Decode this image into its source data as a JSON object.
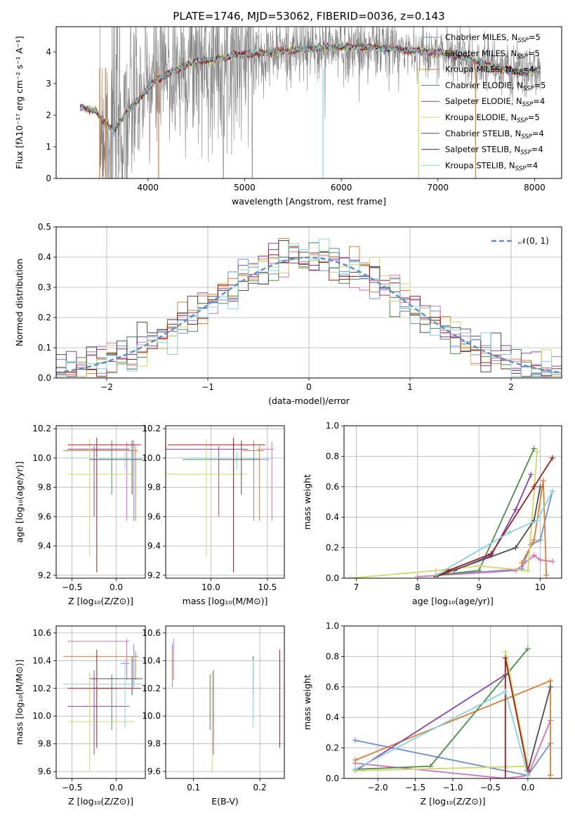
{
  "colors": {
    "series": [
      "#6a8fdb",
      "#d96ec0",
      "#e07b2a",
      "#4a8f4a",
      "#8e3fb0",
      "#cfd95b",
      "#4d4d4d",
      "#a01a1a",
      "#7fd6df"
    ],
    "data_spectrum": "#808080",
    "grid": "#b0b0b0",
    "normal_curve": "#5b8fd0"
  },
  "chart_data": [
    {
      "id": "spectrum",
      "type": "line",
      "title": "PLATE=1746, MJD=53062, FIBERID=0036, z=0.143",
      "xlabel": "wavelength [Angstrom, rest frame]",
      "ylabel": "Flux [fλ10⁻¹⁷ erg cm⁻² s⁻¹ A⁻¹]",
      "xlim": [
        3050,
        8280
      ],
      "ylim": [
        0,
        4.8
      ],
      "xticks": [
        4000,
        5000,
        6000,
        7000,
        8000
      ],
      "yticks": [
        0,
        1,
        2,
        3,
        4
      ],
      "grid": false,
      "legend_position": "top-right",
      "legend": [
        {
          "model": "Chabrier MILES",
          "nssp": "5"
        },
        {
          "model": "Salpeter MILES",
          "nssp": "5"
        },
        {
          "model": "Kroupa MILES",
          "nssp": "4"
        },
        {
          "model": "Chabrier ELODIE",
          "nssp": "5"
        },
        {
          "model": "Salpeter ELODIE",
          "nssp": "4"
        },
        {
          "model": "Kroupa ELODIE",
          "nssp": "5"
        },
        {
          "model": "Chabrier STELIB",
          "nssp": "4"
        },
        {
          "model": "Salpeter STELIB",
          "nssp": "4"
        },
        {
          "model": "Kroupa STELIB",
          "nssp": "4"
        }
      ],
      "continuum": {
        "x": [
          3300,
          3450,
          3550,
          3650,
          3750,
          3850,
          3950,
          4050,
          4150,
          4300,
          4500,
          4700,
          4900,
          5100,
          5300,
          5500,
          5700,
          5900,
          6100,
          6300,
          6500,
          6700,
          6900,
          7100,
          7300,
          7500,
          7700,
          7900,
          8050
        ],
        "y": [
          2.25,
          2.15,
          1.75,
          1.55,
          1.95,
          2.35,
          2.65,
          3.05,
          3.2,
          3.45,
          3.7,
          3.75,
          3.9,
          3.95,
          4.0,
          4.05,
          4.1,
          4.15,
          4.15,
          4.15,
          4.1,
          4.05,
          4.0,
          3.95,
          3.8,
          3.6,
          3.45,
          3.35,
          3.45
        ]
      }
    },
    {
      "id": "residuals",
      "type": "line",
      "xlabel": "(data-model)/error",
      "ylabel": "Normed distribution",
      "xlim": [
        -2.5,
        2.5
      ],
      "ylim": [
        0,
        0.5
      ],
      "xticks": [
        -2,
        -1,
        0,
        1,
        2
      ],
      "yticks": [
        0.0,
        0.1,
        0.2,
        0.3,
        0.4,
        0.5
      ],
      "grid": true,
      "legend_position": "top-right",
      "legend": [
        "𝒩(0, 1)"
      ],
      "normal": {
        "mean": 0,
        "sigma": 1
      }
    },
    {
      "id": "age-vs-Z",
      "type": "scatter",
      "xlabel": "Z [log₁₀(Z/Z⊙)]",
      "ylabel": "age  [log₁₀(age/yr)]",
      "xlim": [
        -0.68,
        0.33
      ],
      "ylim": [
        9.18,
        10.22
      ],
      "xticks": [
        -0.5,
        0.0
      ],
      "yticks": [
        9.2,
        9.4,
        9.6,
        9.8,
        10.0,
        10.2
      ],
      "grid": true
    },
    {
      "id": "age-vs-mass",
      "type": "scatter",
      "xlabel": "mass [log₁₀(M/M⊙)]",
      "xlim": [
        9.6,
        10.65
      ],
      "ylim": [
        9.18,
        10.22
      ],
      "xticks": [
        10.0,
        10.5
      ],
      "yticks": [
        9.2,
        9.4,
        9.6,
        9.8,
        10.0,
        10.2
      ],
      "grid": true
    },
    {
      "id": "weight-vs-age",
      "type": "line",
      "xlabel": "age  [log₁₀(age/yr)]",
      "ylabel": "mass weight",
      "xlim": [
        6.8,
        10.35
      ],
      "ylim": [
        0,
        1.0
      ],
      "xticks": [
        7,
        8,
        9,
        10
      ],
      "yticks": [
        0.0,
        0.2,
        0.4,
        0.6,
        0.8,
        1.0
      ],
      "grid": true
    },
    {
      "id": "mass-vs-Z",
      "type": "scatter",
      "xlabel": "Z [log₁₀(Z/Z⊙)]",
      "ylabel": "mass [log₁₀(M/M⊙)]",
      "xlim": [
        -0.68,
        0.33
      ],
      "ylim": [
        9.55,
        10.65
      ],
      "xticks": [
        -0.5,
        0.0
      ],
      "yticks": [
        9.6,
        9.8,
        10.0,
        10.2,
        10.4,
        10.6
      ],
      "grid": true
    },
    {
      "id": "mass-vs-ebv",
      "type": "scatter",
      "xlabel": "E(B-V)",
      "xlim": [
        0.058,
        0.237
      ],
      "ylim": [
        9.55,
        10.65
      ],
      "xticks": [
        0.1,
        0.2
      ],
      "yticks": [
        9.6,
        9.8,
        10.0,
        10.2,
        10.4,
        10.6
      ],
      "grid": true
    },
    {
      "id": "weight-vs-Z",
      "type": "line",
      "xlabel": "Z [log₁₀(Z/Z⊙)]",
      "ylabel": "mass weight",
      "xlim": [
        -2.45,
        0.45
      ],
      "ylim": [
        0,
        1.0
      ],
      "xticks": [
        -2.0,
        -1.5,
        -1.0,
        -0.5,
        0.0
      ],
      "yticks": [
        0.0,
        0.2,
        0.4,
        0.6,
        0.8,
        1.0
      ],
      "grid": true
    }
  ],
  "fits": [
    {
      "ebv": 0.068,
      "z": [
        0.15,
        0.05,
        0.2,
        0.3
      ],
      "age": [
        9.99,
        9.57,
        10.11,
        9.99
      ],
      "mass": [
        10.38,
        10.22,
        10.52,
        10.38
      ],
      "age_err_v": [
        9.57,
        10.12
      ],
      "mass_v": [
        10.21,
        10.52
      ],
      "age_hist": [
        [
          8.3,
          0.02
        ],
        [
          9.7,
          0.06
        ],
        [
          9.85,
          0.22
        ],
        [
          10.0,
          0.25
        ],
        [
          10.2,
          0.57
        ]
      ],
      "z_hist": [
        [
          -2.3,
          0.25
        ],
        [
          0.0,
          0.02
        ],
        [
          0.3,
          0.23
        ]
      ]
    },
    {
      "ebv": 0.07,
      "z": [
        -0.55,
        0.15,
        0.12,
        0.0
      ],
      "age": [
        10.06,
        9.57,
        10.11,
        10.06
      ],
      "mass": [
        10.54,
        10.22,
        10.56,
        10.54
      ],
      "age_err_v": [
        9.57,
        10.11
      ],
      "mass_v": [
        10.26,
        10.56
      ],
      "age_hist": [
        [
          8.0,
          0.01
        ],
        [
          9.6,
          0.05
        ],
        [
          9.9,
          0.15
        ],
        [
          10.0,
          0.12
        ],
        [
          10.2,
          0.11
        ]
      ],
      "z_hist": [
        [
          -2.3,
          0.1
        ],
        [
          -0.3,
          0.0
        ],
        [
          0.0,
          0.02
        ],
        [
          0.3,
          0.38
        ]
      ]
    },
    {
      "ebv": 0.068,
      "z": [
        -0.6,
        0.25,
        0.22,
        0.0
      ],
      "age": [
        10.05,
        9.57,
        10.08,
        10.05
      ],
      "mass": [
        10.43,
        10.2,
        10.47,
        10.43
      ],
      "age_err_v": [
        9.57,
        10.08
      ],
      "mass_v": [
        10.26,
        10.47
      ],
      "age_hist": [
        [
          9.7,
          0.1
        ],
        [
          9.9,
          0.25
        ],
        [
          10.05,
          0.64
        ],
        [
          10.1,
          0.02
        ]
      ],
      "z_hist": [
        [
          -2.3,
          0.12
        ],
        [
          0.3,
          0.64
        ],
        [
          0.3,
          0.02
        ]
      ]
    },
    {
      "ebv": 0.125,
      "z": [
        -0.22,
        0.0,
        -0.05,
        0.0
      ],
      "age": [
        9.99,
        9.75,
        10.12,
        9.99
      ],
      "mass": [
        10.2,
        9.9,
        10.3,
        10.2
      ],
      "age_err_v": [
        9.75,
        10.12
      ],
      "mass_v": [
        9.9,
        10.3
      ],
      "age_hist": [
        [
          8.3,
          0.02
        ],
        [
          9.0,
          0.05
        ],
        [
          9.9,
          0.85
        ]
      ],
      "z_hist": [
        [
          -2.3,
          0.06
        ],
        [
          -1.3,
          0.08
        ],
        [
          0.0,
          0.85
        ]
      ]
    },
    {
      "ebv": 0.13,
      "z": [
        -0.55,
        0.15,
        -0.25,
        0.0
      ],
      "age": [
        10.06,
        9.6,
        10.08,
        10.06
      ],
      "mass": [
        10.07,
        9.72,
        10.33,
        10.07
      ],
      "age_err_v": [
        9.6,
        10.08
      ],
      "mass_v": [
        9.72,
        10.33
      ],
      "age_hist": [
        [
          8.6,
          0.05
        ],
        [
          9.2,
          0.15
        ],
        [
          9.6,
          0.45
        ],
        [
          9.85,
          0.68
        ]
      ],
      "z_hist": [
        [
          -2.3,
          0.05
        ],
        [
          -0.3,
          0.68
        ]
      ]
    },
    {
      "ebv": 0.128,
      "z": [
        -0.55,
        0.2,
        -0.3,
        0.0
      ],
      "age": [
        9.89,
        9.33,
        10.13,
        9.89
      ],
      "mass": [
        9.96,
        9.6,
        10.32,
        9.96
      ],
      "age_err_v": [
        9.33,
        10.13
      ],
      "mass_v": [
        9.6,
        10.32
      ],
      "age_hist": [
        [
          6.9,
          0.0
        ],
        [
          8.3,
          0.05
        ],
        [
          9.0,
          0.08
        ],
        [
          9.8,
          0.05
        ],
        [
          9.95,
          0.83
        ]
      ],
      "z_hist": [
        [
          -2.3,
          0.05
        ],
        [
          0.0,
          0.08
        ],
        [
          -0.3,
          0.83
        ]
      ]
    },
    {
      "ebv": 0.19,
      "z": [
        -0.3,
        0.3,
        0.18,
        0.0
      ],
      "age": [
        9.99,
        9.98,
        10.0,
        9.99
      ],
      "mass": [
        10.27,
        10.15,
        10.43,
        10.27
      ],
      "age_err_v": [
        9.75,
        10.12
      ],
      "mass_v": [
        10.15,
        10.43
      ],
      "age_hist": [
        [
          8.3,
          0.01
        ],
        [
          9.6,
          0.2
        ],
        [
          9.9,
          0.38
        ],
        [
          10.0,
          0.6
        ]
      ],
      "z_hist": [
        [
          0.0,
          0.05
        ],
        [
          0.3,
          0.6
        ]
      ]
    },
    {
      "ebv": 0.23,
      "z": [
        -0.55,
        0.28,
        -0.22,
        0.0
      ],
      "age": [
        10.09,
        9.22,
        10.14,
        10.09
      ],
      "mass": [
        10.2,
        9.77,
        10.48,
        10.2
      ],
      "age_err_v": [
        9.22,
        10.14
      ],
      "mass_v": [
        9.77,
        10.48
      ],
      "age_hist": [
        [
          8.3,
          0.01
        ],
        [
          8.5,
          0.05
        ],
        [
          9.2,
          0.16
        ],
        [
          9.9,
          0.6
        ],
        [
          10.2,
          0.79
        ]
      ],
      "z_hist": [
        [
          -0.3,
          0.0
        ],
        [
          -0.3,
          0.79
        ],
        [
          0.0,
          0.05
        ]
      ]
    },
    {
      "ebv": 0.19,
      "z": [
        -0.6,
        0.3,
        0.1,
        0.0
      ],
      "age": [
        10.0,
        9.95,
        10.04,
        10.0
      ],
      "mass": [
        10.23,
        9.92,
        10.41,
        10.23
      ],
      "age_err_v": [
        9.92,
        10.04
      ],
      "mass_v": [
        9.92,
        10.41
      ],
      "age_hist": [
        [
          8.3,
          0.02
        ],
        [
          9.5,
          0.3
        ],
        [
          9.95,
          0.38
        ],
        [
          10.2,
          0.57
        ]
      ],
      "z_hist": [
        [
          -2.3,
          0.06
        ],
        [
          -0.3,
          0.57
        ],
        [
          0.0,
          0.02
        ]
      ]
    }
  ]
}
